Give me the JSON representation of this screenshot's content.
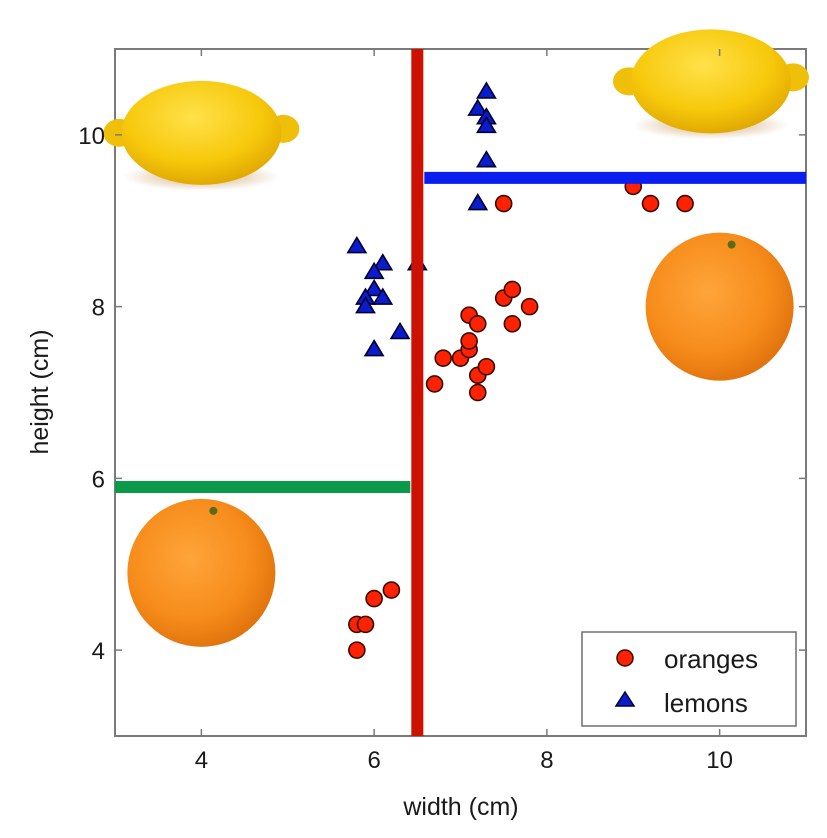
{
  "chart_data": {
    "type": "scatter",
    "title": "",
    "xlabel": "width (cm)",
    "ylabel": "height (cm)",
    "xlim": [
      3,
      11
    ],
    "ylim": [
      3,
      11
    ],
    "xticks": [
      4,
      6,
      8,
      10
    ],
    "yticks": [
      4,
      6,
      8,
      10
    ],
    "grid": false,
    "legend_position": "bottom-right",
    "series": [
      {
        "name": "oranges",
        "marker": "circle",
        "color": "#ff2200",
        "points": [
          [
            5.8,
            4.0
          ],
          [
            5.8,
            4.3
          ],
          [
            5.9,
            4.3
          ],
          [
            6.0,
            4.6
          ],
          [
            6.2,
            4.7
          ],
          [
            6.7,
            7.1
          ],
          [
            6.8,
            7.4
          ],
          [
            7.0,
            7.4
          ],
          [
            7.1,
            7.5
          ],
          [
            7.1,
            7.6
          ],
          [
            7.1,
            7.9
          ],
          [
            7.2,
            7.8
          ],
          [
            7.2,
            7.2
          ],
          [
            7.3,
            7.3
          ],
          [
            7.2,
            7.0
          ],
          [
            7.5,
            8.1
          ],
          [
            7.6,
            8.2
          ],
          [
            7.8,
            8.0
          ],
          [
            7.6,
            7.8
          ],
          [
            7.5,
            9.2
          ],
          [
            9.0,
            9.4
          ],
          [
            9.2,
            9.2
          ],
          [
            9.6,
            9.2
          ]
        ]
      },
      {
        "name": "lemons",
        "marker": "triangle",
        "color": "#0a1ccc",
        "points": [
          [
            5.8,
            8.7
          ],
          [
            6.1,
            8.5
          ],
          [
            6.0,
            8.4
          ],
          [
            6.0,
            8.2
          ],
          [
            6.1,
            8.1
          ],
          [
            5.9,
            8.1
          ],
          [
            5.9,
            8.0
          ],
          [
            6.3,
            7.7
          ],
          [
            6.0,
            7.5
          ],
          [
            6.5,
            8.5
          ],
          [
            7.3,
            10.5
          ],
          [
            7.2,
            10.3
          ],
          [
            7.3,
            10.2
          ],
          [
            7.3,
            10.1
          ],
          [
            7.3,
            9.7
          ],
          [
            7.2,
            9.2
          ]
        ]
      }
    ],
    "decision_boundaries": [
      {
        "name": "width-split",
        "orientation": "vertical",
        "x": 6.5,
        "from": 3,
        "to": 11,
        "color": "#cc1100"
      },
      {
        "name": "height-split-right",
        "orientation": "horizontal",
        "y": 9.5,
        "from": 6.5,
        "to": 11,
        "color": "#0a1ef0"
      },
      {
        "name": "height-split-left",
        "orientation": "horizontal",
        "y": 5.9,
        "from": 3,
        "to": 6.5,
        "color": "#0a9a4a"
      }
    ],
    "region_images": [
      {
        "name": "lemon",
        "label": "lemon",
        "x": 4.0,
        "y": 10.0
      },
      {
        "name": "lemon",
        "label": "lemon",
        "x": 9.9,
        "y": 10.6
      },
      {
        "name": "orange",
        "label": "orange",
        "x": 10.0,
        "y": 8.0
      },
      {
        "name": "orange",
        "label": "orange",
        "x": 4.0,
        "y": 4.9
      }
    ]
  }
}
